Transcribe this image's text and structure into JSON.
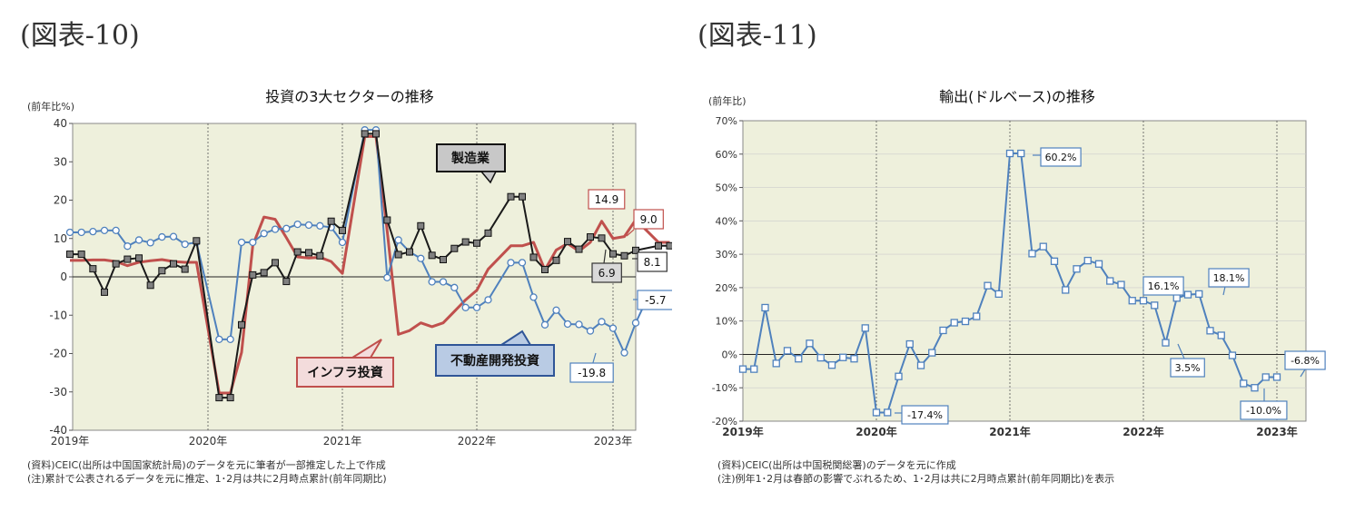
{
  "figures": [
    {
      "id": "fig10",
      "label": "(図表-10)"
    },
    {
      "id": "fig11",
      "label": "(図表-11)"
    }
  ],
  "chart_data": [
    {
      "type": "line",
      "title": "投資の3大セクターの推移",
      "unit_label": "(前年比%)",
      "ylim": [
        -40,
        40
      ],
      "yticks": [
        -40,
        -30,
        -20,
        -10,
        0,
        10,
        20,
        30,
        40
      ],
      "year_labels": [
        "2019年",
        "2020年",
        "2021年",
        "2022年",
        "2023年"
      ],
      "x_start": "2019-01",
      "x_end": "2023-02",
      "grid": "vertical dashed lines at each January",
      "background": "#eef0dc",
      "series": [
        {
          "name": "製造業",
          "color": "#1a1a1a",
          "marker": "square",
          "values": [
            5.9,
            5.9,
            2.1,
            -4.0,
            3.4,
            4.6,
            4.9,
            -2.2,
            1.6,
            3.4,
            2.0,
            9.4,
            null,
            -31.5,
            -31.5,
            -12.5,
            0.5,
            1.1,
            3.7,
            -1.2,
            6.5,
            6.3,
            5.5,
            14.5,
            12.1,
            null,
            37.3,
            37.3,
            14.8,
            5.8,
            6.5,
            13.3,
            5.6,
            4.5,
            7.4,
            9.1,
            8.8,
            11.4,
            null,
            20.9,
            20.9,
            5.1,
            1.9,
            4.3,
            9.2,
            7.2,
            10.4,
            10.1,
            6.0,
            5.5,
            6.9,
            null,
            8.1,
            8.1
          ]
        },
        {
          "name": "インフラ投資",
          "color": "#c0504d",
          "marker": "none",
          "values": [
            4.3,
            4.3,
            4.4,
            4.4,
            4.0,
            2.9,
            3.8,
            4.2,
            4.5,
            4.0,
            3.8,
            3.8,
            null,
            -30.3,
            -30.3,
            -19.7,
            8.2,
            15.6,
            15.0,
            10.2,
            5.2,
            4.9,
            5.1,
            4.0,
            0.9,
            null,
            36.6,
            36.6,
            12.0,
            -15.0,
            -14.0,
            -12.0,
            -13.0,
            -12.0,
            -9.0,
            -6.0,
            -3.5,
            2.0,
            null,
            8.1,
            8.1,
            9.0,
            1.8,
            7.0,
            8.7,
            6.7,
            9.0,
            14.5,
            10.0,
            10.5,
            14.9,
            null,
            9.0,
            9.0
          ]
        },
        {
          "name": "不動産開発投資",
          "color": "#4f81bd",
          "marker": "circle",
          "values": [
            11.6,
            11.6,
            11.8,
            12.1,
            12.1,
            8.0,
            9.6,
            8.9,
            10.4,
            10.5,
            8.5,
            9.0,
            null,
            -16.3,
            -16.3,
            9.0,
            9.0,
            11.3,
            12.4,
            12.6,
            13.7,
            13.5,
            13.3,
            12.9,
            9.0,
            null,
            38.3,
            38.3,
            -0.2,
            9.6,
            6.5,
            4.8,
            -1.3,
            -1.3,
            -2.8,
            -8.0,
            -8.0,
            -6.0,
            null,
            3.7,
            3.7,
            -5.3,
            -12.5,
            -8.7,
            -12.3,
            -12.4,
            -14.1,
            -11.7,
            -13.4,
            -19.8,
            -12.0,
            -5.7,
            -5.7
          ]
        }
      ],
      "callouts": [
        {
          "text": "製造業",
          "series": "製造業"
        },
        {
          "text": "インフラ投資",
          "series": "インフラ投資"
        },
        {
          "text": "不動産開発投資",
          "series": "不動産開発投資"
        }
      ],
      "data_labels": [
        "14.9",
        "9.0",
        "8.1",
        "6.9",
        "-5.7",
        "-19.8"
      ],
      "notes": [
        "(資料)CEIC(出所は中国国家統計局)のデータを元に筆者が一部推定した上で作成",
        "(注)累計で公表されるデータを元に推定、1･2月は共に2月時点累計(前年同期比)"
      ]
    },
    {
      "type": "line",
      "title": "輸出(ドルベース)の推移",
      "unit_label": "(前年比)",
      "ylim": [
        -20,
        70
      ],
      "yticks": [
        "-20%",
        "-10%",
        "0%",
        "10%",
        "20%",
        "30%",
        "40%",
        "50%",
        "60%",
        "70%"
      ],
      "year_labels": [
        "2019年",
        "2020年",
        "2021年",
        "2022年",
        "2023年"
      ],
      "x_start": "2019-01",
      "x_end": "2023-02",
      "grid": "vertical dashed lines at each January",
      "background": "#eef0dc",
      "series": [
        {
          "name": "輸出",
          "color": "#4f81bd",
          "marker": "square-open",
          "values": [
            -4.4,
            -4.4,
            14.0,
            -2.7,
            1.1,
            -1.3,
            3.3,
            -1.0,
            -3.2,
            -0.9,
            -1.3,
            7.9,
            -17.4,
            -17.4,
            -6.6,
            3.1,
            -3.3,
            0.5,
            7.2,
            9.5,
            9.9,
            11.4,
            20.6,
            18.1,
            60.2,
            60.2,
            30.2,
            32.3,
            27.9,
            19.3,
            25.6,
            28.1,
            27.1,
            22.0,
            20.9,
            16.1,
            16.1,
            14.7,
            3.5,
            16.9,
            17.9,
            18.1,
            7.1,
            5.7,
            -0.3,
            -8.7,
            -10.0,
            -6.8,
            -6.8
          ]
        }
      ],
      "data_labels": [
        "60.2%",
        "-17.4%",
        "16.1%",
        "18.1%",
        "3.5%",
        "-10.0%",
        "-6.8%"
      ],
      "notes": [
        "(資料)CEIC(出所は中国税関総署)のデータを元に作成",
        "(注)例年1･2月は春節の影響でぶれるため、1･2月は共に2月時点累計(前年同期比)を表示"
      ]
    }
  ]
}
